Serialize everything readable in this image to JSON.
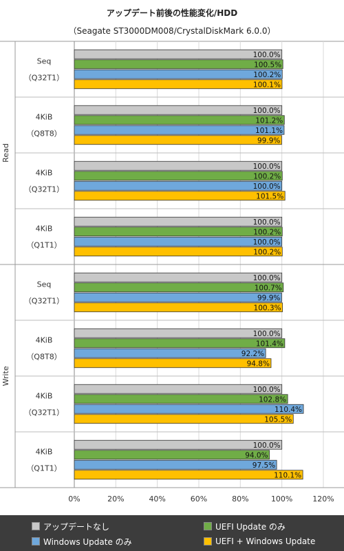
{
  "chart_data": {
    "type": "bar",
    "orientation": "horizontal",
    "title": "アップデート前後の性能変化/HDD",
    "subtitle": "（Seagate ST3000DM008/CrystalDiskMark  6.0.0）",
    "xlim": [
      0,
      120
    ],
    "xticks": [
      "0%",
      "20%",
      "40%",
      "60%",
      "80%",
      "100%",
      "120%"
    ],
    "grid": true,
    "legend_position": "bottom",
    "groups": [
      {
        "name": "Read",
        "categories": [
          {
            "line1": "Seq",
            "line2": "（Q32T1）"
          },
          {
            "line1": "4KiB",
            "line2": "（Q8T8）"
          },
          {
            "line1": "4KiB",
            "line2": "（Q32T1）"
          },
          {
            "line1": "4KiB",
            "line2": "（Q1T1）"
          }
        ]
      },
      {
        "name": "Write",
        "categories": [
          {
            "line1": "Seq",
            "line2": "（Q32T1）"
          },
          {
            "line1": "4KiB",
            "line2": "（Q8T8）"
          },
          {
            "line1": "4KiB",
            "line2": "（Q32T1）"
          },
          {
            "line1": "4KiB",
            "line2": "（Q1T1）"
          }
        ]
      }
    ],
    "series": [
      {
        "name": "アップデートなし",
        "color": "#c8c8c8",
        "values": [
          100.0,
          100.0,
          100.0,
          100.0,
          100.0,
          100.0,
          100.0,
          100.0
        ],
        "labels": [
          "100.0%",
          "100.0%",
          "100.0%",
          "100.0%",
          "100.0%",
          "100.0%",
          "100.0%",
          "100.0%"
        ]
      },
      {
        "name": "UEFI Update のみ",
        "color": "#70ad47",
        "values": [
          100.5,
          101.2,
          100.2,
          100.2,
          100.7,
          101.4,
          102.8,
          94.0
        ],
        "labels": [
          "100.5%",
          "101.2%",
          "100.2%",
          "100.2%",
          "100.7%",
          "101.4%",
          "102.8%",
          "94.0%"
        ]
      },
      {
        "name": "Windows Update のみ",
        "color": "#6fa8dc",
        "values": [
          100.2,
          101.1,
          100.0,
          100.0,
          99.9,
          92.2,
          110.4,
          97.5
        ],
        "labels": [
          "100.2%",
          "101.1%",
          "100.0%",
          "100.0%",
          "99.9%",
          "92.2%",
          "110.4%",
          "97.5%"
        ]
      },
      {
        "name": "UEFI + Windows Update",
        "color": "#ffc000",
        "values": [
          100.1,
          99.9,
          101.5,
          100.2,
          100.3,
          94.8,
          105.5,
          110.1
        ],
        "labels": [
          "100.1%",
          "99.9%",
          "101.5%",
          "100.2%",
          "100.3%",
          "94.8%",
          "105.5%",
          "110.1%"
        ]
      }
    ]
  }
}
